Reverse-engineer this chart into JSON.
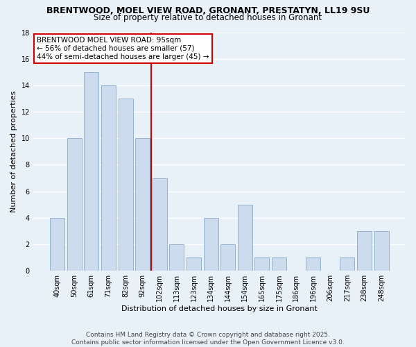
{
  "title": "BRENTWOOD, MOEL VIEW ROAD, GRONANT, PRESTATYN, LL19 9SU",
  "subtitle": "Size of property relative to detached houses in Gronant",
  "xlabel": "Distribution of detached houses by size in Gronant",
  "ylabel": "Number of detached properties",
  "bar_labels": [
    "40sqm",
    "50sqm",
    "61sqm",
    "71sqm",
    "82sqm",
    "92sqm",
    "102sqm",
    "113sqm",
    "123sqm",
    "134sqm",
    "144sqm",
    "154sqm",
    "165sqm",
    "175sqm",
    "186sqm",
    "196sqm",
    "206sqm",
    "217sqm",
    "238sqm",
    "248sqm"
  ],
  "bar_values": [
    4,
    10,
    15,
    14,
    13,
    10,
    7,
    2,
    1,
    4,
    2,
    5,
    1,
    1,
    0,
    1,
    0,
    1,
    3,
    3
  ],
  "bar_color": "#ccdcee",
  "bar_edge_color": "#8aaac8",
  "vline_x_index": 6,
  "vline_color": "#cc0000",
  "annotation_line1": "BRENTWOOD MOEL VIEW ROAD: 95sqm",
  "annotation_line2": "← 56% of detached houses are smaller (57)",
  "annotation_line3": "44% of semi-detached houses are larger (45) →",
  "ylim": [
    0,
    18
  ],
  "yticks": [
    0,
    2,
    4,
    6,
    8,
    10,
    12,
    14,
    16,
    18
  ],
  "background_color": "#e8f0f8",
  "grid_color": "#ffffff",
  "footer_line1": "Contains HM Land Registry data © Crown copyright and database right 2025.",
  "footer_line2": "Contains public sector information licensed under the Open Government Licence v3.0.",
  "title_fontsize": 9,
  "subtitle_fontsize": 8.5,
  "annotation_fontsize": 7.5,
  "axis_label_fontsize": 8,
  "tick_fontsize": 7,
  "footer_fontsize": 6.5
}
